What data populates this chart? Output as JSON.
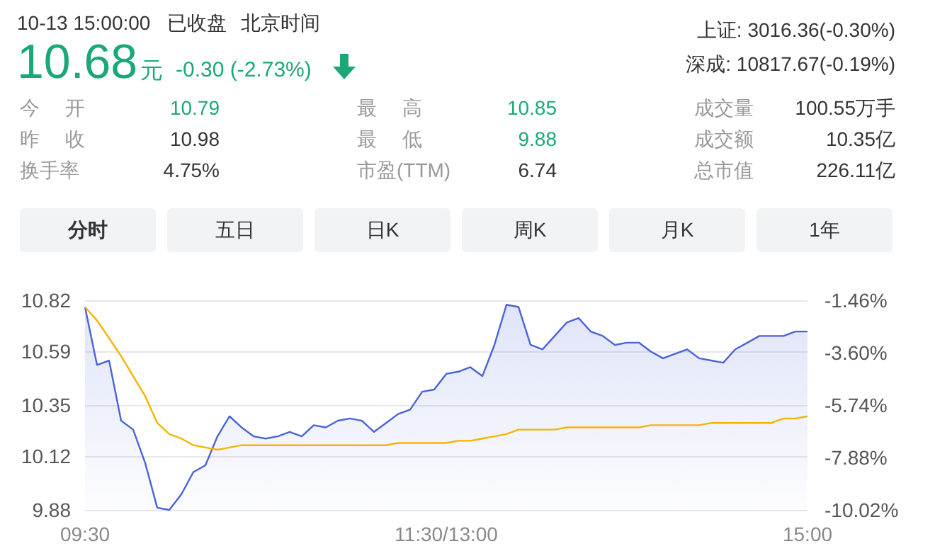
{
  "chart_data": [
    {
      "type": "other",
      "annotations": [
        "10-13 15:00:00",
        "已收盘",
        "北京时间",
        "10.68",
        "元",
        "-0.30 (-2.73%)",
        "上证: 3016.36(-0.30%)",
        "深成: 10817.67(-0.19%)",
        "今 开",
        "10.79",
        "最 高",
        "10.85",
        "成交量",
        "100.55万手",
        "昨 收",
        "10.98",
        "最 低",
        "9.88",
        "成交额",
        "10.35亿",
        "换手率",
        "4.75%",
        "市盈(TTM)",
        "6.74",
        "总市值",
        "226.11亿",
        "分时",
        "五日",
        "日K",
        "周K",
        "月K",
        "1年"
      ]
    },
    {
      "type": "line",
      "grid": "y",
      "marker": "none",
      "categories": [
        "09:30",
        null,
        null,
        null,
        null,
        null,
        null,
        null,
        null,
        null,
        null,
        null,
        null,
        null,
        null,
        null,
        null,
        null,
        null,
        null,
        null,
        null,
        null,
        null,
        null,
        null,
        null,
        null,
        null,
        null,
        "11:30/13:00",
        null,
        null,
        null,
        null,
        null,
        null,
        null,
        null,
        null,
        null,
        null,
        null,
        null,
        null,
        null,
        null,
        null,
        null,
        null,
        null,
        null,
        null,
        null,
        null,
        null,
        null,
        null,
        null,
        null,
        "15:00"
      ],
      "ylim": [
        9.88,
        10.82
      ],
      "yticks": [
        9.88,
        10.12,
        10.35,
        10.59,
        10.82
      ],
      "y2lim": [
        -10.02,
        -1.46
      ],
      "y2ticks": [
        {
          "value": -10.02,
          "label": "-10.02%"
        },
        {
          "value": -7.88,
          "label": "-7.88%"
        },
        {
          "value": -5.74,
          "label": "-5.74%"
        },
        {
          "value": -3.6,
          "label": "-3.60%"
        },
        {
          "value": -1.46,
          "label": "-1.46%"
        }
      ],
      "series": [
        {
          "type": "area",
          "color": "#4a63d8",
          "values": [
            10.79,
            10.53,
            10.55,
            10.28,
            10.24,
            10.09,
            9.89,
            9.88,
            9.95,
            10.05,
            10.08,
            10.21,
            10.3,
            10.25,
            10.21,
            10.2,
            10.21,
            10.23,
            10.21,
            10.26,
            10.25,
            10.28,
            10.29,
            10.28,
            10.23,
            10.27,
            10.31,
            10.33,
            10.41,
            10.42,
            10.49,
            10.5,
            10.52,
            10.48,
            10.62,
            10.8,
            10.79,
            10.62,
            10.6,
            10.66,
            10.72,
            10.74,
            10.68,
            10.66,
            10.62,
            10.63,
            10.63,
            10.59,
            10.56,
            10.58,
            10.6,
            10.56,
            10.55,
            10.54,
            10.6,
            10.63,
            10.66,
            10.66,
            10.66,
            10.68,
            10.68
          ]
        },
        {
          "type": "line",
          "color": "#f5b400",
          "values": [
            10.79,
            10.73,
            10.65,
            10.57,
            10.48,
            10.39,
            10.27,
            10.22,
            10.2,
            10.17,
            10.16,
            10.15,
            10.16,
            10.17,
            10.17,
            10.17,
            10.17,
            10.17,
            10.17,
            10.17,
            10.17,
            10.17,
            10.17,
            10.17,
            10.17,
            10.17,
            10.18,
            10.18,
            10.18,
            10.18,
            10.18,
            10.19,
            10.19,
            10.2,
            10.21,
            10.22,
            10.24,
            10.24,
            10.24,
            10.24,
            10.25,
            10.25,
            10.25,
            10.25,
            10.25,
            10.25,
            10.25,
            10.26,
            10.26,
            10.26,
            10.26,
            10.26,
            10.27,
            10.27,
            10.27,
            10.27,
            10.27,
            10.27,
            10.29,
            10.29,
            10.3
          ]
        }
      ]
    }
  ]
}
